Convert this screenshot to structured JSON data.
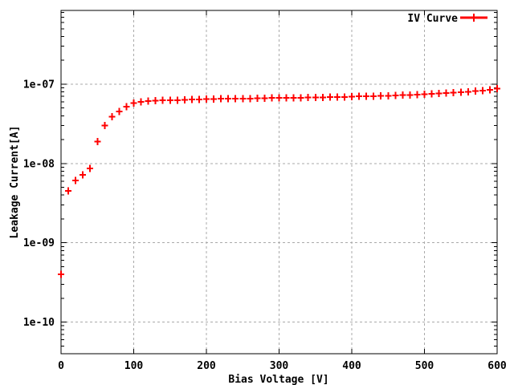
{
  "chart_data": {
    "type": "scatter",
    "title": "",
    "legend": "IV Curve",
    "legend_position": "top-right-inside",
    "xlabel": "Bias Voltage [V]",
    "ylabel": "Leakage Current[A]",
    "x_scale": "linear",
    "y_scale": "log",
    "xlim": [
      0,
      600
    ],
    "ylim": [
      4e-11,
      8.5e-07
    ],
    "x_ticks": [
      0,
      100,
      200,
      300,
      400,
      500,
      600
    ],
    "x_tick_labels": [
      "0",
      "100",
      "200",
      "300",
      "400",
      "500",
      "600"
    ],
    "y_ticks": [
      1e-10,
      1e-09,
      1e-08,
      1e-07
    ],
    "y_tick_labels": [
      "1e-10",
      "1e-09",
      "1e-08",
      "1e-07"
    ],
    "grid": true,
    "marker": "plus",
    "marker_color": "#ff0000",
    "grid_color": "#aaaaaa",
    "border_color": "#000000",
    "x": [
      0,
      10,
      20,
      30,
      40,
      50,
      60,
      70,
      80,
      90,
      100,
      110,
      120,
      130,
      140,
      150,
      160,
      170,
      180,
      190,
      200,
      210,
      220,
      230,
      240,
      250,
      260,
      270,
      280,
      290,
      300,
      310,
      320,
      330,
      340,
      350,
      360,
      370,
      380,
      390,
      400,
      410,
      420,
      430,
      440,
      450,
      460,
      470,
      480,
      490,
      500,
      510,
      520,
      530,
      540,
      550,
      560,
      570,
      580,
      590,
      600
    ],
    "y": [
      4e-10,
      4.5e-09,
      6.1e-09,
      7.2e-09,
      8.7e-09,
      1.9e-08,
      3e-08,
      3.9e-08,
      4.5e-08,
      5.2e-08,
      5.75e-08,
      5.95e-08,
      6.1e-08,
      6.2e-08,
      6.25e-08,
      6.3e-08,
      6.3e-08,
      6.35e-08,
      6.4e-08,
      6.45e-08,
      6.5e-08,
      6.5e-08,
      6.55e-08,
      6.55e-08,
      6.6e-08,
      6.6e-08,
      6.6e-08,
      6.65e-08,
      6.65e-08,
      6.7e-08,
      6.7e-08,
      6.7e-08,
      6.75e-08,
      6.75e-08,
      6.8e-08,
      6.8e-08,
      6.8e-08,
      6.85e-08,
      6.85e-08,
      6.9e-08,
      6.95e-08,
      7e-08,
      7e-08,
      7.05e-08,
      7.1e-08,
      7.15e-08,
      7.2e-08,
      7.25e-08,
      7.3e-08,
      7.4e-08,
      7.45e-08,
      7.55e-08,
      7.6e-08,
      7.7e-08,
      7.8e-08,
      7.9e-08,
      8e-08,
      8.15e-08,
      8.3e-08,
      8.45e-08,
      8.8e-08
    ]
  }
}
